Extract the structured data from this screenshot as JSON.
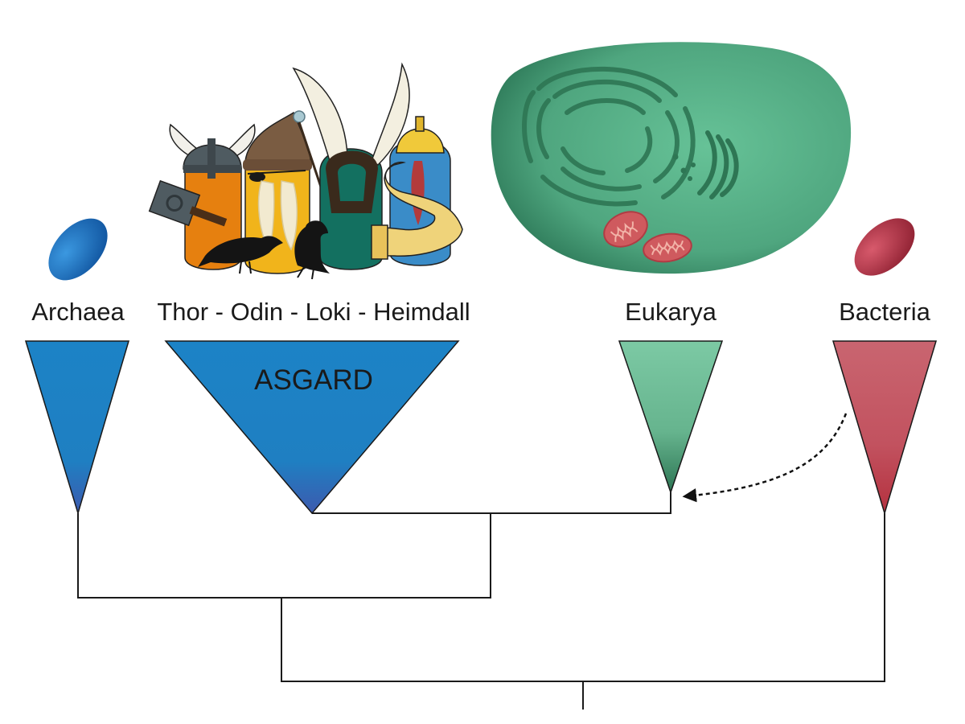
{
  "labels": {
    "archaea": "Archaea",
    "asgard_members": "Thor - Odin - Loki - Heimdall",
    "asgard": "ASGARD",
    "eukarya": "Eukarya",
    "bacteria": "Bacteria"
  },
  "colors": {
    "archaea_blue": "#1f7fc2",
    "archaea_blue_dark": "#3a5fb0",
    "eukarya_green": "#77c5a0",
    "eukarya_green_dark": "#2f7a57",
    "bacteria_red": "#c45a66",
    "bacteria_red_dark": "#b83848",
    "tree_line": "#1a1a1a"
  },
  "icons": {
    "archaea_cell": "archaea-cell-icon",
    "asgard_gods": "asgard-gods-illustration",
    "eukaryotic_cell": "eukaryotic-cell-icon",
    "bacteria_cell": "bacteria-cell-icon",
    "gene_transfer_arrow": "dashed-arrow-icon"
  }
}
